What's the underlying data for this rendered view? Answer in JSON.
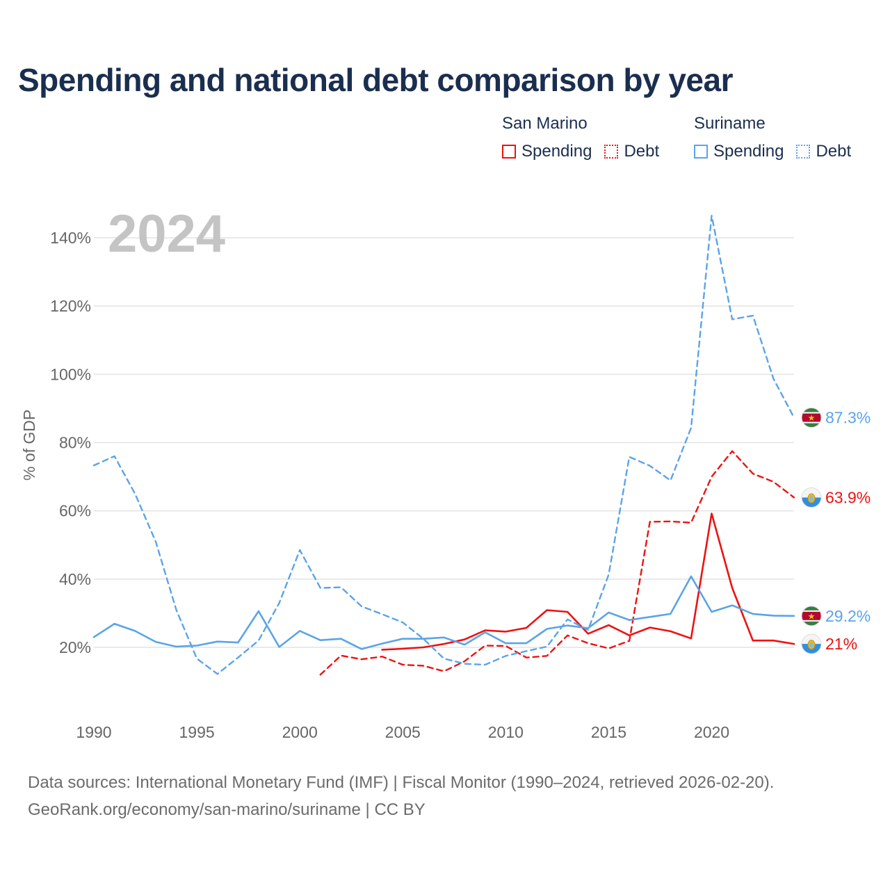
{
  "title": "Spending and national debt comparison by year",
  "legend": {
    "groups": [
      {
        "country": "San Marino",
        "color": "#ee1111",
        "items": [
          {
            "label": "Spending",
            "style": "solid"
          },
          {
            "label": "Debt",
            "style": "dotted"
          }
        ]
      },
      {
        "country": "Suriname",
        "color": "#5aa4e8",
        "items": [
          {
            "label": "Spending",
            "style": "solid"
          },
          {
            "label": "Debt",
            "style": "dotted"
          }
        ]
      }
    ]
  },
  "year_watermark": "2024",
  "sources": {
    "line1": "Data sources: International Monetary Fund (IMF) | Fiscal Monitor (1990–2024, retrieved 2026-02-20).",
    "line2": "GeoRank.org/economy/san-marino/suriname | CC BY"
  },
  "chart_data": {
    "type": "line",
    "title": "Spending and national debt comparison by year",
    "xlabel": "",
    "ylabel": "% of GDP",
    "xlim": [
      1990,
      2024
    ],
    "ylim": [
      0,
      150
    ],
    "x_ticks": [
      1990,
      1995,
      2000,
      2005,
      2010,
      2015,
      2020
    ],
    "x_tick_labels": [
      "1990",
      "1995",
      "2000",
      "2005",
      "2010",
      "2015",
      "2020"
    ],
    "y_ticks": [
      20,
      40,
      60,
      80,
      100,
      120,
      140
    ],
    "y_tick_labels": [
      "20%",
      "40%",
      "60%",
      "80%",
      "100%",
      "120%",
      "140%"
    ],
    "grid": true,
    "legend_position": "top-right",
    "series": [
      {
        "name": "San Marino Spending",
        "country": "San Marino",
        "metric": "Spending",
        "color": "#ee1111",
        "dash": "solid",
        "end_label": "21%",
        "flag": "san-marino",
        "x": [
          2004,
          2005,
          2006,
          2007,
          2008,
          2009,
          2010,
          2011,
          2012,
          2013,
          2014,
          2015,
          2016,
          2017,
          2018,
          2019,
          2020,
          2021,
          2022,
          2023,
          2024
        ],
        "y": [
          19.3,
          19.6,
          20.0,
          21.0,
          22.3,
          25.0,
          24.6,
          25.7,
          30.9,
          30.4,
          24.0,
          26.5,
          23.5,
          25.8,
          24.7,
          22.6,
          59.2,
          37.4,
          22.0,
          22.0,
          21.0
        ]
      },
      {
        "name": "San Marino Debt",
        "country": "San Marino",
        "metric": "Debt",
        "color": "#ee1111",
        "dash": "dashed",
        "end_label": "63.9%",
        "flag": "san-marino",
        "x": [
          2001,
          2002,
          2003,
          2004,
          2005,
          2006,
          2007,
          2008,
          2009,
          2010,
          2011,
          2012,
          2013,
          2014,
          2015,
          2016,
          2017,
          2018,
          2019,
          2020,
          2021,
          2022,
          2023,
          2024
        ],
        "y": [
          12.0,
          17.6,
          16.5,
          17.3,
          14.9,
          14.6,
          13.0,
          15.9,
          20.5,
          20.4,
          17.0,
          17.5,
          23.5,
          21.2,
          19.7,
          21.9,
          56.8,
          56.9,
          56.5,
          70.0,
          77.5,
          70.9,
          68.5,
          63.9
        ]
      },
      {
        "name": "Suriname Spending",
        "country": "Suriname",
        "metric": "Spending",
        "color": "#5aa4e8",
        "dash": "solid",
        "end_label": "29.2%",
        "flag": "suriname",
        "x": [
          1990,
          1991,
          1992,
          1993,
          1994,
          1995,
          1996,
          1997,
          1998,
          1999,
          2000,
          2001,
          2002,
          2003,
          2004,
          2005,
          2006,
          2007,
          2008,
          2009,
          2010,
          2011,
          2012,
          2013,
          2014,
          2015,
          2016,
          2017,
          2018,
          2019,
          2020,
          2021,
          2022,
          2023,
          2024
        ],
        "y": [
          23.0,
          26.9,
          24.8,
          21.6,
          20.2,
          20.5,
          21.7,
          21.4,
          30.6,
          20.1,
          24.8,
          22.1,
          22.5,
          19.5,
          21.1,
          22.5,
          22.5,
          22.9,
          20.8,
          24.4,
          21.2,
          21.2,
          25.4,
          26.4,
          25.6,
          30.2,
          28.0,
          28.9,
          29.8,
          40.8,
          30.4,
          32.3,
          29.8,
          29.3,
          29.2
        ]
      },
      {
        "name": "Suriname Debt",
        "country": "Suriname",
        "metric": "Debt",
        "color": "#5aa4e8",
        "dash": "dashed",
        "end_label": "87.3%",
        "flag": "suriname",
        "x": [
          1990,
          1991,
          1992,
          1993,
          1994,
          1995,
          1996,
          1997,
          1998,
          1999,
          2000,
          2001,
          2002,
          2003,
          2004,
          2005,
          2006,
          2007,
          2008,
          2009,
          2010,
          2011,
          2012,
          2013,
          2014,
          2015,
          2016,
          2017,
          2018,
          2019,
          2020,
          2021,
          2022,
          2023,
          2024
        ],
        "y": [
          73.3,
          76.0,
          65.0,
          51.0,
          31.0,
          16.7,
          12.2,
          17.0,
          22.0,
          33.0,
          48.5,
          37.4,
          37.6,
          32.0,
          29.7,
          27.3,
          22.5,
          16.7,
          15.2,
          14.9,
          17.5,
          18.9,
          20.2,
          28.2,
          25.1,
          41.3,
          75.8,
          73.2,
          68.9,
          84.3,
          146.5,
          116.1,
          117.2,
          98.7,
          87.3
        ]
      }
    ]
  }
}
